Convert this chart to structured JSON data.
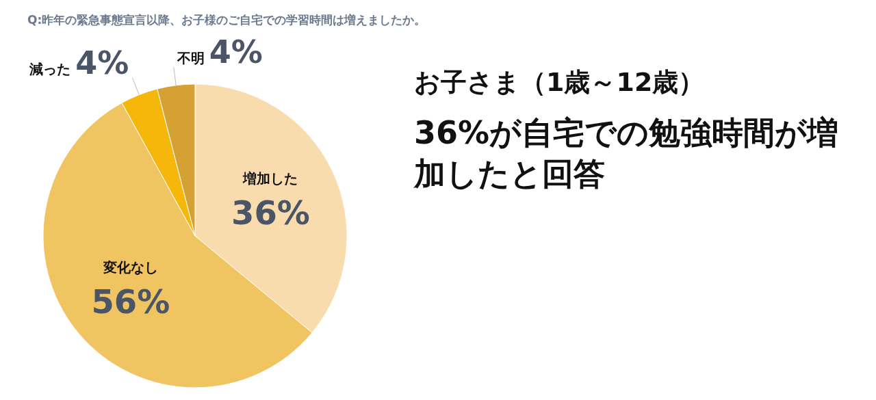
{
  "chart_data": {
    "type": "pie",
    "title": "Q:昨年の緊急事態宣言以降、お子様のご自宅での学習時間は増えましたか。",
    "categories": [
      "増加した",
      "変化なし",
      "減った",
      "不明"
    ],
    "values": [
      36,
      56,
      4,
      4
    ],
    "colors": [
      "#f9dcae",
      "#f1c462",
      "#f5b70a",
      "#d4a132"
    ],
    "value_labels": [
      "36%",
      "56%",
      "4%",
      "4%"
    ],
    "annotations": [
      "お子さま（1歳～12歳）",
      "36%が自宅での勉強時間が増加したと回答"
    ]
  }
}
